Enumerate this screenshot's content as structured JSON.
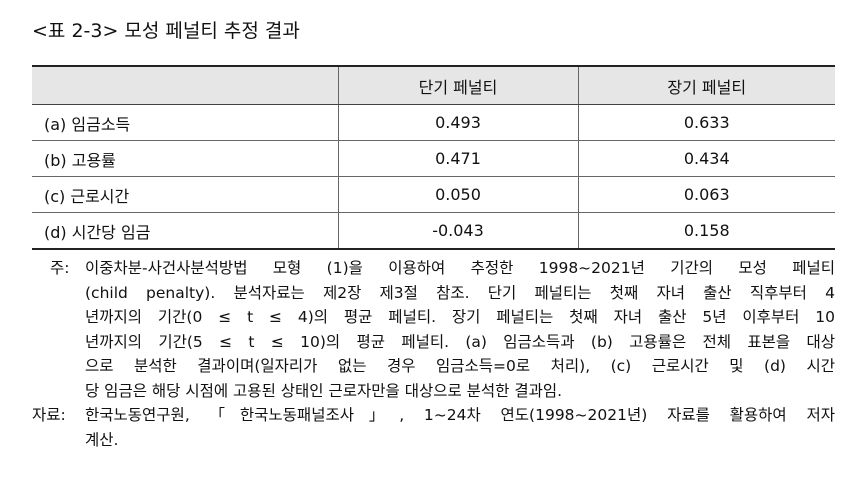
{
  "header": {
    "title": "<표 2-3> 모성 페널티 추정 결과"
  },
  "table": {
    "columns": [
      "단기 페널티",
      "장기 페널티"
    ],
    "rows": [
      [
        "(a) 임금소득",
        "0.493",
        "0.633"
      ],
      [
        "(b) 고용률",
        "0.471",
        "0.434"
      ],
      [
        "(c) 근로시간",
        "0.050",
        "0.063"
      ],
      [
        "(d) 시간당 임금",
        "-0.043",
        "0.158"
      ]
    ]
  },
  "note": {
    "label": "주:",
    "lines": [
      "이중차분-사건사분석방법 모형 (1)을 이용하여 추정한 1998~2021년 기간의 모성 페널티",
      "(child penalty). 분석자료는 제2장 제3절 참조. 단기 페널티는 첫째 자녀 출산 직후부터 4",
      "년까지의 기간(0 ≤ t ≤ 4)의 평균 페널티. 장기 페널티는 첫째 자녀 출산 5년 이후부터 10",
      "년까지의 기간(5 ≤ t ≤ 10)의 평균 페널티. (a) 임금소득과 (b) 고용률은 전체 표본을 대상",
      "으로 분석한 결과이며(일자리가 없는 경우 임금소득=0로 처리), (c) 근로시간 및 (d) 시간",
      "당 임금은 해당 시점에 고용된 상태인 근로자만을 대상으로 분석한 결과임."
    ]
  },
  "source": {
    "label": "자료:",
    "lines": [
      "한국노동연구원, 「한국노동패널조사」, 1~24차 연도(1998~2021년) 자료를 활용하여 저자",
      "계산."
    ]
  }
}
